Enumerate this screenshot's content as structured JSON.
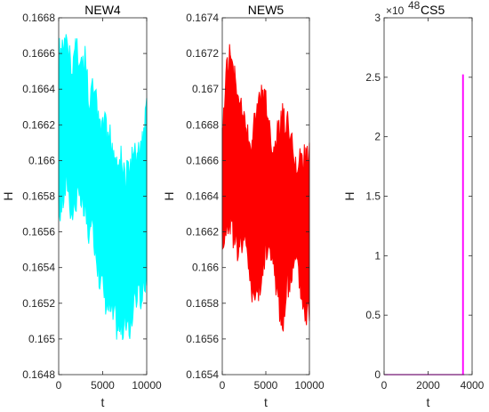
{
  "chart_data": [
    {
      "type": "line",
      "title": "NEW4",
      "xlabel": "t",
      "ylabel": "H",
      "xlim": [
        0,
        10000
      ],
      "ylim": [
        0.1648,
        0.1668
      ],
      "x_ticks": [
        0,
        5000,
        10000
      ],
      "x_tick_labels": [
        "0",
        "5000",
        "10000"
      ],
      "y_ticks": [
        0.1648,
        0.165,
        0.1652,
        0.1654,
        0.1656,
        0.1658,
        0.166,
        0.1662,
        0.1664,
        0.1666,
        0.1668
      ],
      "y_tick_labels": [
        "0.1648",
        "0.165",
        "0.1652",
        "0.1654",
        "0.1656",
        "0.1658",
        "0.166",
        "0.1662",
        "0.1664",
        "0.1666",
        "0.1668"
      ],
      "grid": false,
      "color": "#00FFFF",
      "series": [
        {
          "x": [
            0,
            500,
            1000,
            1500,
            2000,
            2500,
            3000,
            3500,
            4000,
            4500,
            5000,
            5500,
            6000,
            6500,
            7000,
            7500,
            8000,
            8500,
            9000,
            9500,
            10000
          ],
          "upper": [
            0.1667,
            0.1667,
            0.16672,
            0.1666,
            0.16675,
            0.1666,
            0.16665,
            0.1664,
            0.1665,
            0.1663,
            0.1663,
            0.16625,
            0.1662,
            0.1661,
            0.1661,
            0.166,
            0.16605,
            0.1661,
            0.1661,
            0.1662,
            0.16635
          ],
          "lower": [
            0.1656,
            0.1657,
            0.1658,
            0.1656,
            0.1657,
            0.1657,
            0.1656,
            0.1655,
            0.1655,
            0.1653,
            0.1652,
            0.1651,
            0.16505,
            0.165,
            0.16495,
            0.165,
            0.16495,
            0.1651,
            0.1652,
            0.1651,
            0.1653
          ]
        }
      ]
    },
    {
      "type": "line",
      "title": "NEW5",
      "xlabel": "t",
      "ylabel": "H",
      "xlim": [
        0,
        10000
      ],
      "ylim": [
        0.1654,
        0.1674
      ],
      "x_ticks": [
        0,
        5000,
        10000
      ],
      "x_tick_labels": [
        "0",
        "5000",
        "10000"
      ],
      "y_ticks": [
        0.1654,
        0.1656,
        0.1658,
        0.166,
        0.1662,
        0.1664,
        0.1666,
        0.1668,
        0.167,
        0.1672,
        0.1674
      ],
      "y_tick_labels": [
        "0.1654",
        "0.1656",
        "0.1658",
        "0.166",
        "0.1662",
        "0.1664",
        "0.1666",
        "0.1668",
        "0.167",
        "0.1672",
        "0.1674"
      ],
      "grid": false,
      "color": "#FF0000",
      "series": [
        {
          "x": [
            0,
            500,
            1000,
            1500,
            2000,
            2500,
            3000,
            3500,
            4000,
            4500,
            5000,
            5500,
            6000,
            6500,
            7000,
            7500,
            8000,
            8500,
            9000,
            9500,
            10000
          ],
          "upper": [
            0.1668,
            0.1672,
            0.1673,
            0.1671,
            0.167,
            0.1669,
            0.1668,
            0.1668,
            0.167,
            0.1671,
            0.167,
            0.1668,
            0.1667,
            0.1669,
            0.167,
            0.1669,
            0.1668,
            0.1666,
            0.1667,
            0.1667,
            0.1667
          ],
          "lower": [
            0.1661,
            0.1661,
            0.1662,
            0.166,
            0.16605,
            0.1661,
            0.16595,
            0.16575,
            0.1657,
            0.1658,
            0.16605,
            0.166,
            0.1659,
            0.1657,
            0.16555,
            0.1658,
            0.1659,
            0.166,
            0.1658,
            0.16565,
            0.1657
          ]
        }
      ]
    },
    {
      "type": "line",
      "title": "CS5",
      "exponent_label": "×10",
      "exponent_power": "48",
      "xlabel": "t",
      "ylabel": "H",
      "xlim": [
        0,
        4000
      ],
      "ylim": [
        0,
        3
      ],
      "x_ticks": [
        0,
        2000,
        4000
      ],
      "x_tick_labels": [
        "0",
        "2000",
        "4000"
      ],
      "y_ticks": [
        0,
        0.5,
        1,
        1.5,
        2,
        2.5,
        3
      ],
      "y_tick_labels": [
        "0",
        "0.5",
        "1",
        "1.5",
        "2",
        "2.5",
        "3"
      ],
      "grid": false,
      "color": "#FF00FF",
      "series": [
        {
          "x": [
            0,
            3550,
            3570,
            3570,
            3600,
            3600,
            3650
          ],
          "y": [
            0,
            0,
            0,
            2.52,
            2.52,
            0,
            0
          ]
        }
      ]
    }
  ]
}
